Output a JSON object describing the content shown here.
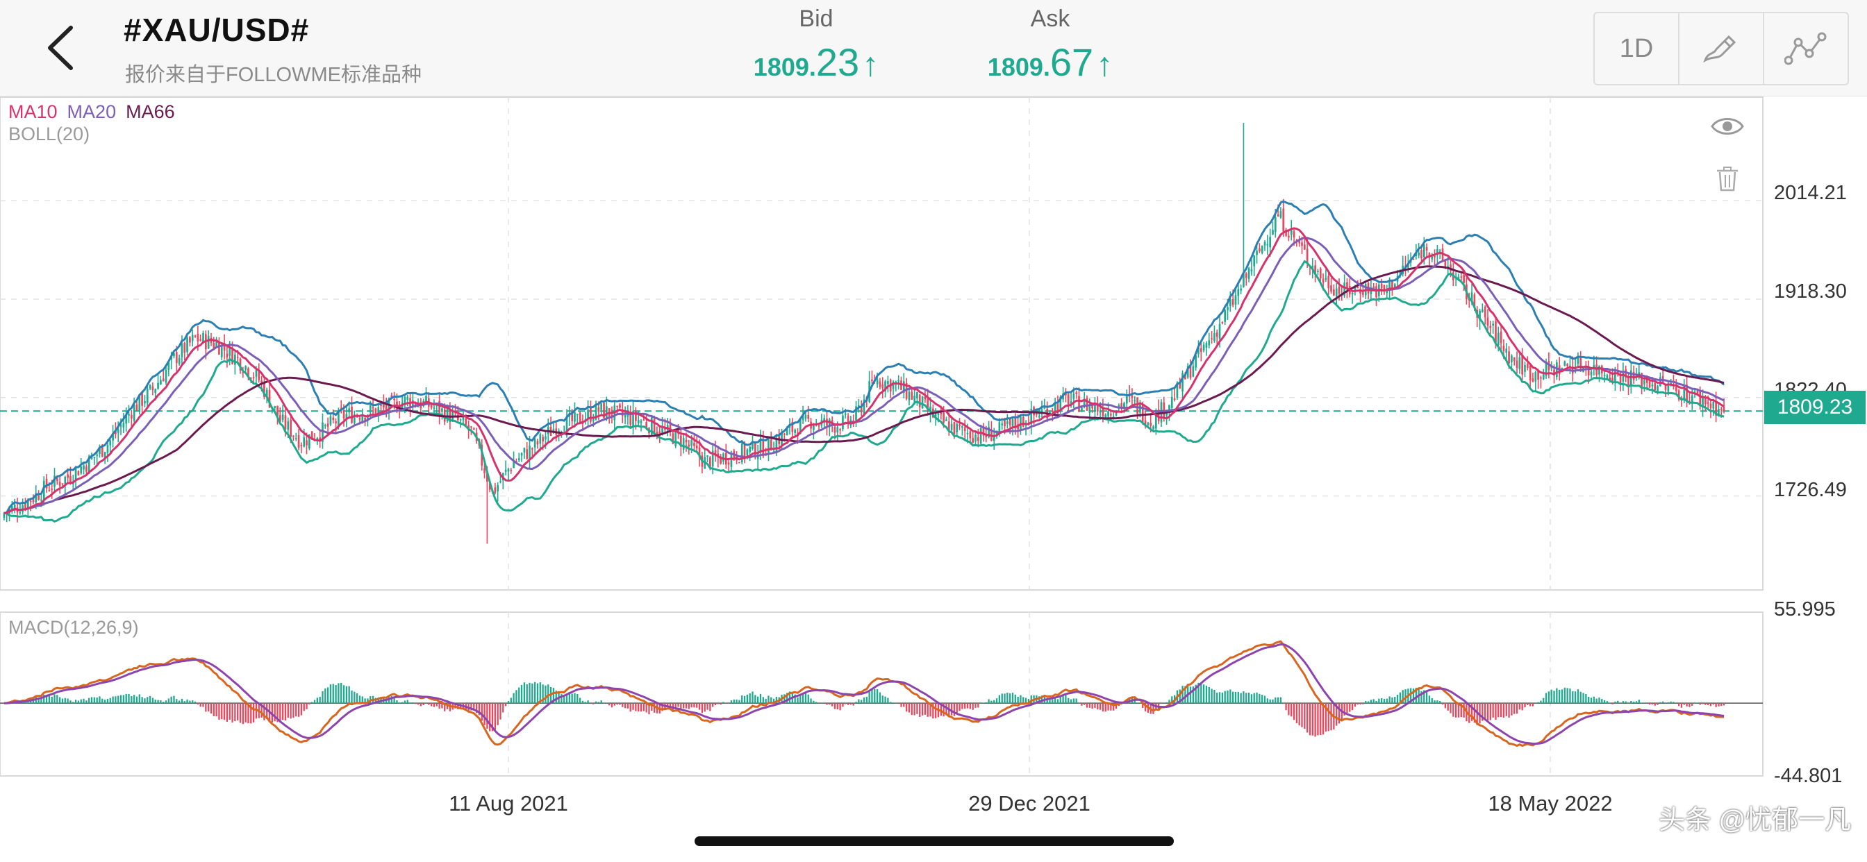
{
  "header": {
    "title": "#XAU/USD#",
    "subtitle": "报价来自于FOLLOWME标准品种",
    "bid": {
      "label": "Bid",
      "small": "1809.",
      "big": "23",
      "arrow": "↑"
    },
    "ask": {
      "label": "Ask",
      "small": "1809.",
      "big": "67",
      "arrow": "↑"
    },
    "timeframe_label": "1D",
    "tools": [
      "timeframe-button",
      "draw-tool-icon",
      "indicator-tool-icon"
    ]
  },
  "legend": {
    "ma10": "MA10",
    "ma20": "MA20",
    "ma66": "MA66",
    "boll": "BOLL(20)",
    "macd": "MACD(12,26,9)"
  },
  "colors": {
    "bullish": "#1faa8f",
    "bearish": "#e8475d",
    "ma10": "#d6336c",
    "ma20": "#7b5fb7",
    "ma66": "#6b1a4f",
    "boll": "#2b7fb2",
    "dif": "#d9661f",
    "dea": "#8e44ad"
  },
  "price_axis": {
    "labels": [
      "2014.21",
      "1918.30",
      "1822.40",
      "1726.49"
    ],
    "current_price": "1809.23"
  },
  "macd_axis": {
    "max": "55.995",
    "min": "-44.801"
  },
  "date_axis": [
    "11 Aug 2021",
    "29 Dec 2021",
    "18 May 2022"
  ],
  "watermark": "头条 @忧郁一凡",
  "chart_data": {
    "type": "candlestick",
    "ylim": [
      1635,
      2115
    ],
    "ma_series": [
      "MA10",
      "MA20",
      "MA66"
    ],
    "boll": "BOLL(20)",
    "macd_ylim": [
      -44.801,
      55.995
    ],
    "close_path": [
      [
        0,
        1710
      ],
      [
        8,
        1720
      ],
      [
        16,
        1735
      ],
      [
        24,
        1745
      ],
      [
        32,
        1760
      ],
      [
        40,
        1780
      ],
      [
        48,
        1810
      ],
      [
        56,
        1830
      ],
      [
        64,
        1860
      ],
      [
        72,
        1880
      ],
      [
        80,
        1875
      ],
      [
        88,
        1860
      ],
      [
        96,
        1840
      ],
      [
        104,
        1800
      ],
      [
        112,
        1780
      ],
      [
        120,
        1790
      ],
      [
        128,
        1805
      ],
      [
        136,
        1808
      ],
      [
        144,
        1812
      ],
      [
        152,
        1820
      ],
      [
        160,
        1815
      ],
      [
        168,
        1805
      ],
      [
        176,
        1790
      ],
      [
        184,
        1730
      ],
      [
        192,
        1760
      ],
      [
        200,
        1775
      ],
      [
        208,
        1795
      ],
      [
        216,
        1800
      ],
      [
        224,
        1810
      ],
      [
        232,
        1805
      ],
      [
        240,
        1800
      ],
      [
        248,
        1790
      ],
      [
        256,
        1780
      ],
      [
        264,
        1760
      ],
      [
        272,
        1765
      ],
      [
        280,
        1770
      ],
      [
        288,
        1775
      ],
      [
        296,
        1790
      ],
      [
        304,
        1800
      ],
      [
        312,
        1795
      ],
      [
        320,
        1800
      ],
      [
        328,
        1840
      ],
      [
        336,
        1835
      ],
      [
        344,
        1820
      ],
      [
        352,
        1800
      ],
      [
        360,
        1790
      ],
      [
        368,
        1785
      ],
      [
        376,
        1790
      ],
      [
        384,
        1800
      ],
      [
        392,
        1810
      ],
      [
        400,
        1820
      ],
      [
        408,
        1815
      ],
      [
        416,
        1810
      ],
      [
        424,
        1820
      ],
      [
        432,
        1800
      ],
      [
        440,
        1820
      ],
      [
        448,
        1855
      ],
      [
        456,
        1885
      ],
      [
        464,
        1920
      ],
      [
        472,
        1960
      ],
      [
        480,
        2000
      ],
      [
        488,
        1970
      ],
      [
        496,
        1940
      ],
      [
        504,
        1925
      ],
      [
        512,
        1930
      ],
      [
        520,
        1925
      ],
      [
        528,
        1950
      ],
      [
        536,
        1970
      ],
      [
        544,
        1950
      ],
      [
        552,
        1920
      ],
      [
        560,
        1890
      ],
      [
        568,
        1860
      ],
      [
        576,
        1845
      ],
      [
        584,
        1850
      ],
      [
        592,
        1855
      ],
      [
        600,
        1850
      ],
      [
        608,
        1845
      ],
      [
        616,
        1840
      ],
      [
        624,
        1835
      ],
      [
        632,
        1828
      ],
      [
        640,
        1820
      ],
      [
        648,
        1809
      ]
    ]
  }
}
